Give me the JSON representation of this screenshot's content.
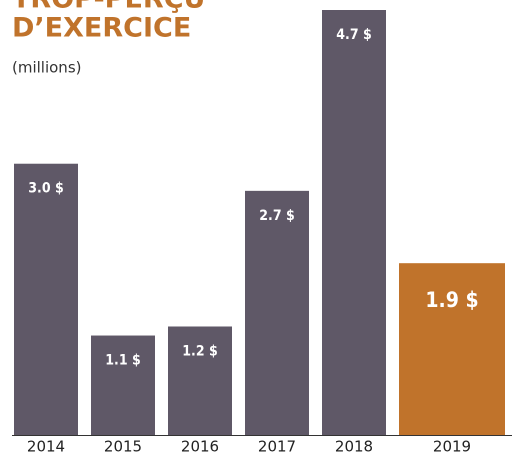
{
  "chart_data": {
    "type": "bar",
    "title": [
      "TROP-PERÇU",
      "D’EXERCICE"
    ],
    "subtitle": "(millions)",
    "categories": [
      "2014",
      "2015",
      "2016",
      "2017",
      "2018",
      "2019"
    ],
    "values": [
      3.0,
      1.1,
      1.2,
      2.7,
      4.7,
      1.9
    ],
    "value_labels": [
      "3.0 $",
      "1.1 $",
      "1.2 $",
      "2.7 $",
      "4.7 $",
      "1.9 $"
    ],
    "colors": [
      "#5f5867",
      "#5f5867",
      "#5f5867",
      "#5f5867",
      "#5f5867",
      "#c0732b"
    ]
  }
}
